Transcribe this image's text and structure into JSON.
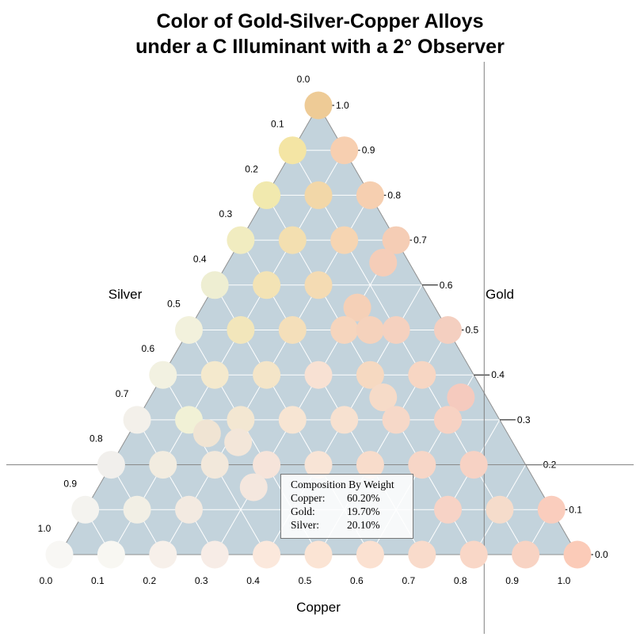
{
  "chart_data": {
    "type": "scatter",
    "subtype": "ternary",
    "title_lines": [
      "Color of Gold-Silver-Copper Alloys",
      "under a C Illuminant with a 2° Observer"
    ],
    "axes": {
      "bottom": {
        "label": "Copper",
        "ticks": [
          "0.0",
          "0.1",
          "0.2",
          "0.3",
          "0.4",
          "0.5",
          "0.6",
          "0.7",
          "0.8",
          "0.9",
          "1.0"
        ]
      },
      "left": {
        "label": "Silver",
        "ticks": [
          "0.0",
          "0.1",
          "0.2",
          "0.3",
          "0.4",
          "0.5",
          "0.6",
          "0.7",
          "0.8",
          "0.9",
          "1.0"
        ]
      },
      "right": {
        "label": "Gold",
        "ticks": [
          "1.0",
          "0.9",
          "0.8",
          "0.7",
          "0.6",
          "0.5",
          "0.4",
          "0.3",
          "0.2",
          "0.1",
          "0.0"
        ]
      }
    },
    "grid": true,
    "crosshair": {
      "copper": 0.72,
      "gold": 0.2
    },
    "points": [
      {
        "copper": 0.0,
        "gold": 1.0,
        "color": "#eecb96"
      },
      {
        "copper": 0.0,
        "gold": 0.9,
        "color": "#f4e5a4"
      },
      {
        "copper": 0.1,
        "gold": 0.9,
        "color": "#f7cfb0"
      },
      {
        "copper": 0.0,
        "gold": 0.8,
        "color": "#f1e9ae"
      },
      {
        "copper": 0.1,
        "gold": 0.8,
        "color": "#f2d7a8"
      },
      {
        "copper": 0.2,
        "gold": 0.8,
        "color": "#f6cfb0"
      },
      {
        "copper": 0.0,
        "gold": 0.7,
        "color": "#f1ecc0"
      },
      {
        "copper": 0.1,
        "gold": 0.7,
        "color": "#f3dfb0"
      },
      {
        "copper": 0.2,
        "gold": 0.7,
        "color": "#f6d5b2"
      },
      {
        "copper": 0.3,
        "gold": 0.7,
        "color": "#f5cdb5"
      },
      {
        "copper": 0.3,
        "gold": 0.65,
        "color": "#f5cdb8"
      },
      {
        "copper": 0.0,
        "gold": 0.6,
        "color": "#eeeed2"
      },
      {
        "copper": 0.1,
        "gold": 0.6,
        "color": "#f3e3b5"
      },
      {
        "copper": 0.2,
        "gold": 0.6,
        "color": "#f4dbb3"
      },
      {
        "copper": 0.3,
        "gold": 0.55,
        "color": "#f5d0b7"
      },
      {
        "copper": 0.0,
        "gold": 0.5,
        "color": "#f2f1dc"
      },
      {
        "copper": 0.1,
        "gold": 0.5,
        "color": "#f2e6bb"
      },
      {
        "copper": 0.2,
        "gold": 0.5,
        "color": "#f4dfba"
      },
      {
        "copper": 0.3,
        "gold": 0.5,
        "color": "#f6d5bd"
      },
      {
        "copper": 0.35,
        "gold": 0.5,
        "color": "#f5d2bc"
      },
      {
        "copper": 0.4,
        "gold": 0.5,
        "color": "#f5d1bf"
      },
      {
        "copper": 0.5,
        "gold": 0.5,
        "color": "#f4cfc0"
      },
      {
        "copper": 0.0,
        "gold": 0.4,
        "color": "#f2f1e1"
      },
      {
        "copper": 0.1,
        "gold": 0.4,
        "color": "#f4e9cd"
      },
      {
        "copper": 0.2,
        "gold": 0.4,
        "color": "#f4e5c8"
      },
      {
        "copper": 0.3,
        "gold": 0.4,
        "color": "#f8e1d3"
      },
      {
        "copper": 0.4,
        "gold": 0.4,
        "color": "#f6d9c1"
      },
      {
        "copper": 0.5,
        "gold": 0.4,
        "color": "#f7d6c3"
      },
      {
        "copper": 0.6,
        "gold": 0.35,
        "color": "#f5cabe"
      },
      {
        "copper": 0.6,
        "gold": 0.3,
        "color": "#f5cfbf"
      },
      {
        "copper": 0.0,
        "gold": 0.3,
        "color": "#f3f0ea"
      },
      {
        "copper": 0.1,
        "gold": 0.3,
        "color": "#f1f1d6"
      },
      {
        "copper": 0.2,
        "gold": 0.3,
        "color": "#f3e7d2"
      },
      {
        "copper": 0.3,
        "gold": 0.3,
        "color": "#f7e5d3"
      },
      {
        "copper": 0.4,
        "gold": 0.3,
        "color": "#f7e1d0"
      },
      {
        "copper": 0.45,
        "gold": 0.35,
        "color": "#f6dbc8"
      },
      {
        "copper": 0.5,
        "gold": 0.3,
        "color": "#f6d8c8"
      },
      {
        "copper": 0.6,
        "gold": 0.3,
        "color": "#f7d2c3"
      },
      {
        "copper": 0.0,
        "gold": 0.2,
        "color": "#f1efec"
      },
      {
        "copper": 0.1,
        "gold": 0.2,
        "color": "#f2ece0"
      },
      {
        "copper": 0.2,
        "gold": 0.2,
        "color": "#f2e8db"
      },
      {
        "copper": 0.22,
        "gold": 0.25,
        "color": "#f3e6d9"
      },
      {
        "copper": 0.3,
        "gold": 0.2,
        "color": "#f6e4da"
      },
      {
        "copper": 0.4,
        "gold": 0.2,
        "color": "#f8e4d6"
      },
      {
        "copper": 0.5,
        "gold": 0.2,
        "color": "#f8dccb"
      },
      {
        "copper": 0.6,
        "gold": 0.2,
        "color": "#f7d6c7"
      },
      {
        "copper": 0.7,
        "gold": 0.2,
        "color": "#f7d2c4"
      },
      {
        "copper": 0.15,
        "gold": 0.27,
        "color": "#f0e4d3"
      },
      {
        "copper": 0.0,
        "gold": 0.1,
        "color": "#f4f3ef"
      },
      {
        "copper": 0.1,
        "gold": 0.1,
        "color": "#f2efe5"
      },
      {
        "copper": 0.2,
        "gold": 0.1,
        "color": "#f3eae1"
      },
      {
        "copper": 0.3,
        "gold": 0.15,
        "color": "#f4e7de"
      },
      {
        "copper": 0.7,
        "gold": 0.1,
        "color": "#f7d3c6"
      },
      {
        "copper": 0.8,
        "gold": 0.1,
        "color": "#f5dccb"
      },
      {
        "copper": 0.9,
        "gold": 0.1,
        "color": "#facdbd"
      },
      {
        "copper": 0.0,
        "gold": 0.0,
        "color": "#f8f7f4"
      },
      {
        "copper": 0.1,
        "gold": 0.0,
        "color": "#f8f7f2"
      },
      {
        "copper": 0.2,
        "gold": 0.0,
        "color": "#f7f0ea"
      },
      {
        "copper": 0.3,
        "gold": 0.0,
        "color": "#f7ece6"
      },
      {
        "copper": 0.4,
        "gold": 0.0,
        "color": "#fbe8dc"
      },
      {
        "copper": 0.5,
        "gold": 0.0,
        "color": "#fbe4d4"
      },
      {
        "copper": 0.6,
        "gold": 0.0,
        "color": "#fbe1d1"
      },
      {
        "copper": 0.7,
        "gold": 0.0,
        "color": "#f9dbcb"
      },
      {
        "copper": 0.8,
        "gold": 0.0,
        "color": "#f9d7c7"
      },
      {
        "copper": 0.9,
        "gold": 0.0,
        "color": "#f8d3c3"
      },
      {
        "copper": 1.0,
        "gold": 0.0,
        "color": "#fbcbb8"
      }
    ],
    "tooltip": {
      "heading": "Composition By Weight",
      "rows": [
        {
          "key": "Copper:",
          "value": "60.20%"
        },
        {
          "key": "Gold:",
          "value": "19.70%"
        },
        {
          "key": "Silver:",
          "value": "20.10%"
        }
      ]
    },
    "colors": {
      "triangle_fill": "#c3d3dc",
      "grid": "#ffffff",
      "border": "#909090"
    }
  }
}
